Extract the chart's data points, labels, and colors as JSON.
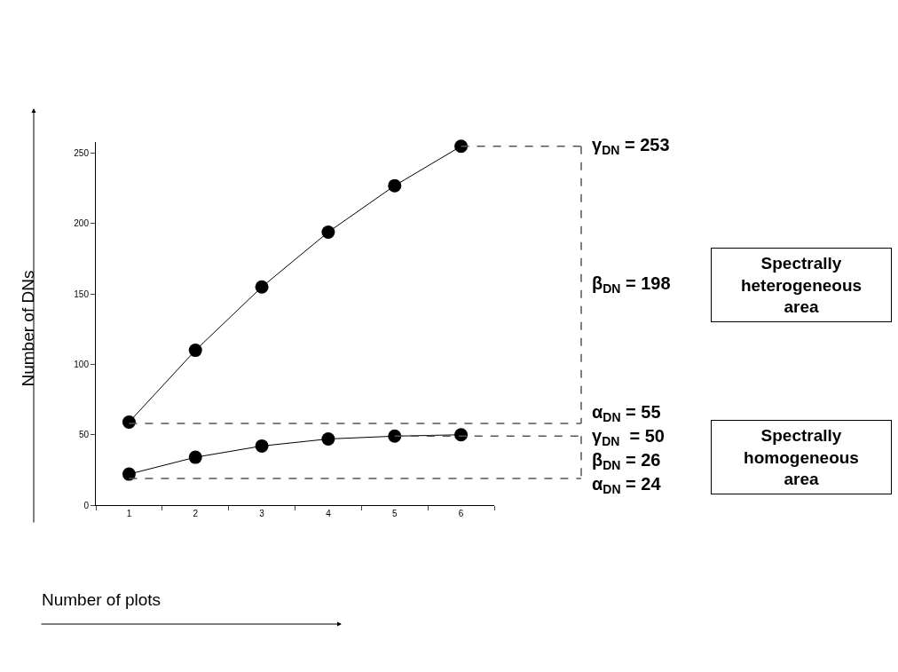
{
  "chart_data": {
    "type": "line",
    "xlabel": "Number of plots",
    "ylabel": "Number of DNs",
    "categories": [
      "1",
      "2",
      "3",
      "4",
      "5",
      "6"
    ],
    "series": [
      {
        "color": "#000000",
        "values": [
          59,
          110,
          155,
          194,
          227,
          255
        ]
      },
      {
        "color": "#000000",
        "values": [
          22,
          34,
          42,
          47,
          49,
          50
        ]
      }
    ],
    "ylim": [
      0,
      258
    ],
    "yticks": [
      0,
      50,
      100,
      150,
      200,
      250
    ],
    "marker": "circle",
    "line_style": "solid",
    "ref_lines": [
      {
        "axis": "y",
        "value": 255,
        "line_style": "dashed",
        "color": "#555555"
      },
      {
        "axis": "y",
        "value": 58,
        "line_style": "dashed",
        "color": "#555555"
      },
      {
        "axis": "y",
        "value": 49,
        "line_style": "dashed",
        "color": "#555555"
      },
      {
        "axis": "y",
        "value": 19,
        "line_style": "dashed",
        "color": "#555555"
      }
    ],
    "annotations": [
      "γ$_{DN}$ = 253",
      "β$_{DN}$ = 198",
      "α$_{DN}$ = 55",
      "γ$_{DN}$  = 50",
      "β$_{DN}$ = 26",
      "α$_{DN}$ = 24",
      "Spectrally heterogeneous area",
      "Spectrally homogeneous area"
    ]
  }
}
